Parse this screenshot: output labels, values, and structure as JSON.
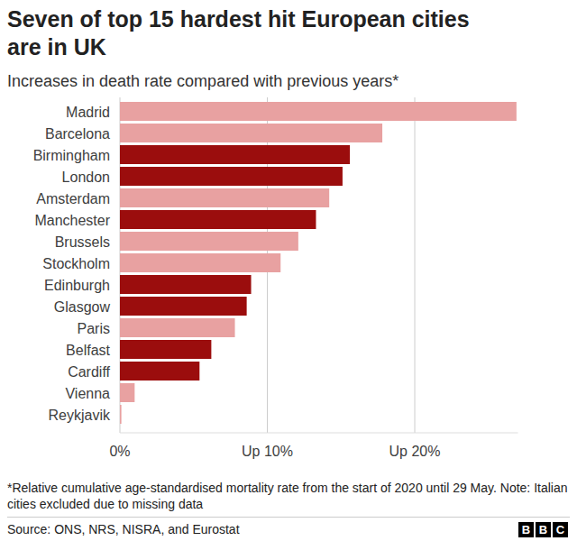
{
  "chart_data": {
    "type": "bar",
    "orientation": "horizontal",
    "title": "Seven of top 15 hardest hit European cities are in UK",
    "subtitle": "Increases in death rate compared with previous years*",
    "footnote": "*Relative cumulative age-standardised mortality rate from the start of 2020 until 29 May. Note: Italian cities excluded due to missing data",
    "source": "Source: ONS, NRS, NISRA, and Eurostat",
    "logo": "BBC",
    "categories": [
      "Madrid",
      "Barcelona",
      "Birmingham",
      "London",
      "Amsterdam",
      "Manchester",
      "Brussels",
      "Stockholm",
      "Edinburgh",
      "Glasgow",
      "Paris",
      "Belfast",
      "Cardiff",
      "Vienna",
      "Reykjavik"
    ],
    "values": [
      26.9,
      17.8,
      15.6,
      15.1,
      14.2,
      13.3,
      12.1,
      10.9,
      8.9,
      8.6,
      7.8,
      6.2,
      5.4,
      1.0,
      0.1
    ],
    "colors": [
      "#e8a1a1",
      "#e8a1a1",
      "#9b0d0d",
      "#9b0d0d",
      "#e8a1a1",
      "#9b0d0d",
      "#e8a1a1",
      "#e8a1a1",
      "#9b0d0d",
      "#9b0d0d",
      "#e8a1a1",
      "#9b0d0d",
      "#9b0d0d",
      "#e8a1a1",
      "#e8a1a1"
    ],
    "xlim": [
      0,
      27
    ],
    "xticks": [
      {
        "value": 0,
        "label": "0%"
      },
      {
        "value": 10,
        "label": "Up 10%"
      },
      {
        "value": 20,
        "label": "Up 20%"
      }
    ],
    "grid": true
  }
}
